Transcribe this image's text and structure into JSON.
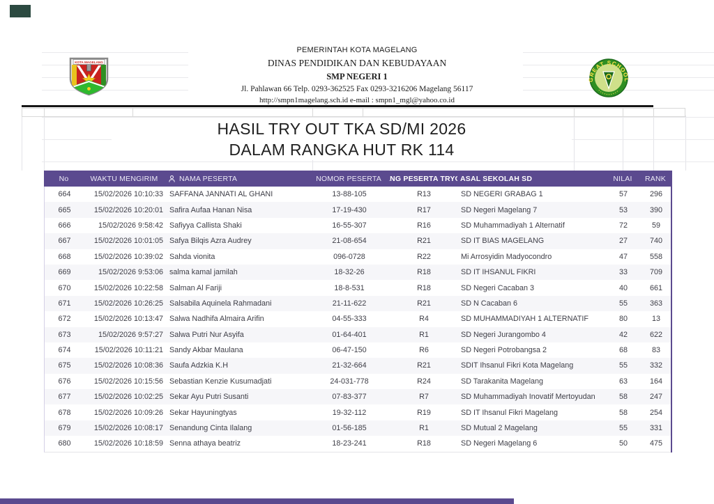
{
  "letterhead": {
    "line1": "PEMERINTAH KOTA MAGELANG",
    "line2": "DINAS PENDIDIKAN DAN KEBUDAYAAN",
    "line3": "SMP NEGERI 1",
    "line4": "Jl. Pahlawan 66 Telp. 0293-362525 Fax 0293-3216206 Magelang 56117",
    "line5": "http://smpn1magelang.sch.id e-mail : smpn1_mgl@yahoo.co.id",
    "left_logo": "kota-magelang-crest",
    "left_logo_banner": "KOTA MAGELANG",
    "right_logo": "great-school-badge",
    "right_logo_text": "GREAT SCHOOL"
  },
  "title": {
    "line1": "HASIL TRY OUT TKA SD/MI 2026",
    "line2": "DALAM RANGKA HUT RK 114"
  },
  "table": {
    "headers": {
      "no": "No",
      "waktu": "WAKTU MENGIRIM",
      "nama": "NAMA PESERTA",
      "nomor": "NOMOR PESERTA",
      "jenjang": "JANG PESERTA TRYOU",
      "asal": "ASAL SEKOLAH SD",
      "nilai": "NILAI",
      "rank": "RANK"
    },
    "rows": [
      {
        "no": "664",
        "waktu": "15/02/2026 10:10:33",
        "nama": "SAFFANA JANNATI AL GHANI",
        "nomor": "13-88-105",
        "jenjang": "R13",
        "asal": "SD NEGERI GRABAG 1",
        "nilai": "57",
        "rank": "296"
      },
      {
        "no": "665",
        "waktu": "15/02/2026 10:20:01",
        "nama": "Safira Aufaa Hanan Nisa",
        "nomor": "17-19-430",
        "jenjang": "R17",
        "asal": "SD Negeri Magelang 7",
        "nilai": "53",
        "rank": "390"
      },
      {
        "no": "666",
        "waktu": "15/02/2026 9:58:42",
        "nama": "Safiyya Callista Shaki",
        "nomor": "16-55-307",
        "jenjang": "R16",
        "asal": "SD Muhammadiyah 1 Alternatif",
        "nilai": "72",
        "rank": "59"
      },
      {
        "no": "667",
        "waktu": "15/02/2026 10:01:05",
        "nama": "Safya Bilqis Azra Audrey",
        "nomor": "21-08-654",
        "jenjang": "R21",
        "asal": "SD IT BIAS MAGELANG",
        "nilai": "27",
        "rank": "740"
      },
      {
        "no": "668",
        "waktu": "15/02/2026 10:39:02",
        "nama": "Sahda vionita",
        "nomor": "096-0728",
        "jenjang": "R22",
        "asal": "Mi Arrosyidin Madyocondro",
        "nilai": "47",
        "rank": "558"
      },
      {
        "no": "669",
        "waktu": "15/02/2026 9:53:06",
        "nama": "salma kamal jamilah",
        "nomor": "18-32-26",
        "jenjang": "R18",
        "asal": "SD IT IHSANUL FIKRI",
        "nilai": "33",
        "rank": "709"
      },
      {
        "no": "670",
        "waktu": "15/02/2026 10:22:58",
        "nama": "Salman Al Fariji",
        "nomor": "18-8-531",
        "jenjang": "R18",
        "asal": "SD Negeri Cacaban 3",
        "nilai": "40",
        "rank": "661"
      },
      {
        "no": "671",
        "waktu": "15/02/2026 10:26:25",
        "nama": "Salsabila Aquinela Rahmadani",
        "nomor": "21-11-622",
        "jenjang": "R21",
        "asal": "SD N Cacaban 6",
        "nilai": "55",
        "rank": "363"
      },
      {
        "no": "672",
        "waktu": "15/02/2026 10:13:47",
        "nama": "Salwa Nadhifa Almaira Arifin",
        "nomor": "04-55-333",
        "jenjang": "R4",
        "asal": "SD MUHAMMADIYAH 1 ALTERNATIF",
        "nilai": "80",
        "rank": "13"
      },
      {
        "no": "673",
        "waktu": "15/02/2026 9:57:27",
        "nama": "Salwa Putri Nur Asyifa",
        "nomor": "01-64-401",
        "jenjang": "R1",
        "asal": "SD Negeri Jurangombo 4",
        "nilai": "42",
        "rank": "622"
      },
      {
        "no": "674",
        "waktu": "15/02/2026 10:11:21",
        "nama": "Sandy Akbar Maulana",
        "nomor": "06-47-150",
        "jenjang": "R6",
        "asal": "SD Negeri Potrobangsa 2",
        "nilai": "68",
        "rank": "83"
      },
      {
        "no": "675",
        "waktu": "15/02/2026 10:08:36",
        "nama": "Saufa Adzkia K.H",
        "nomor": "21-32-664",
        "jenjang": "R21",
        "asal": "SDIT Ihsanul Fikri Kota Magelang",
        "nilai": "55",
        "rank": "332"
      },
      {
        "no": "676",
        "waktu": "15/02/2026 10:15:56",
        "nama": "Sebastian Kenzie Kusumadjati",
        "nomor": "24-031-778",
        "jenjang": "R24",
        "asal": "SD Tarakanita Magelang",
        "nilai": "63",
        "rank": "164"
      },
      {
        "no": "677",
        "waktu": "15/02/2026 10:02:25",
        "nama": "Sekar Ayu Putri Susanti",
        "nomor": "07-83-377",
        "jenjang": "R7",
        "asal": "SD Muhammadiyah Inovatif Mertoyudan",
        "nilai": "58",
        "rank": "247"
      },
      {
        "no": "678",
        "waktu": "15/02/2026 10:09:26",
        "nama": "Sekar Hayuningtyas",
        "nomor": "19-32-112",
        "jenjang": "R19",
        "asal": "SD IT Ihsanul Fikri Magelang",
        "nilai": "58",
        "rank": "254"
      },
      {
        "no": "679",
        "waktu": "15/02/2026 10:08:17",
        "nama": "Senandung Cinta Ilalang",
        "nomor": "01-56-185",
        "jenjang": "R1",
        "asal": "SD Mutual 2 Magelang",
        "nilai": "55",
        "rank": "331"
      },
      {
        "no": "680",
        "waktu": "15/02/2026 10:18:59",
        "nama": "Senna athaya beatriz",
        "nomor": "18-23-241",
        "jenjang": "R18",
        "asal": "SD Negeri Magelang 6",
        "nilai": "50",
        "rank": "475"
      }
    ]
  },
  "colors": {
    "accent_purple": "#5b4a8f",
    "stripe": "#f6f6f9",
    "corner_block": "#2c4a41"
  }
}
